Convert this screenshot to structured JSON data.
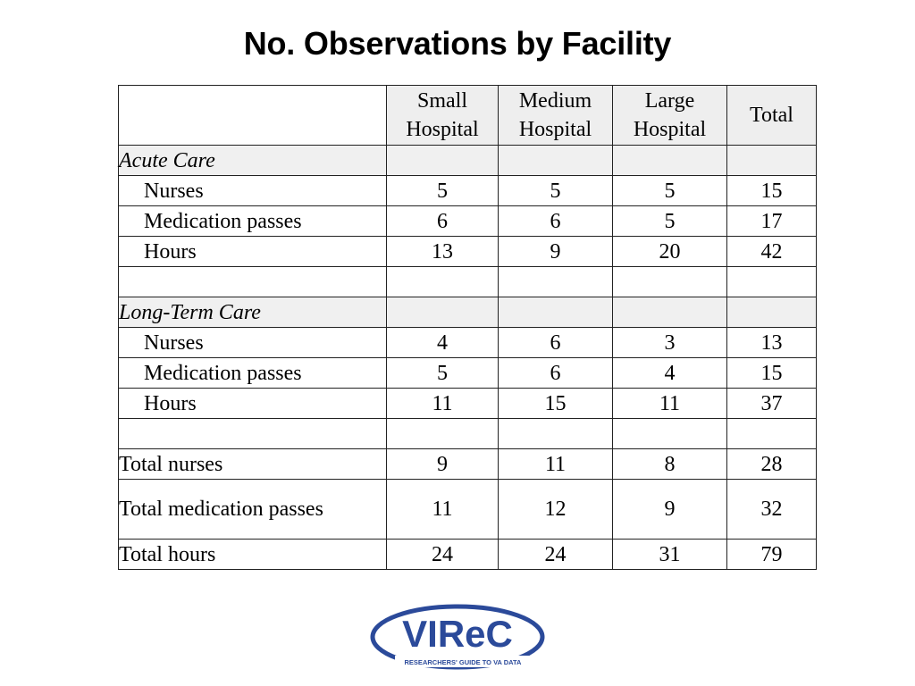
{
  "title": "No. Observations by Facility",
  "table": {
    "headers": [
      "",
      "Small\nHospital",
      "Medium\nHospital",
      "Large\nHospital",
      "Total"
    ],
    "header_lines": [
      [
        "Small",
        "Hospital"
      ],
      [
        "Medium",
        "Hospital"
      ],
      [
        "Large",
        "Hospital"
      ],
      [
        "Total"
      ]
    ],
    "rows": [
      {
        "type": "section",
        "label": "Acute Care",
        "values": [
          "",
          "",
          "",
          ""
        ]
      },
      {
        "type": "indent",
        "label": "Nurses",
        "values": [
          "5",
          "5",
          "5",
          "15"
        ]
      },
      {
        "type": "indent",
        "label": "Medication passes",
        "values": [
          "6",
          "6",
          "5",
          "17"
        ]
      },
      {
        "type": "indent",
        "label": "Hours",
        "values": [
          "13",
          "9",
          "20",
          "42"
        ]
      },
      {
        "type": "blank",
        "label": "",
        "values": [
          "",
          "",
          "",
          ""
        ]
      },
      {
        "type": "section",
        "label": "Long-Term Care",
        "values": [
          "",
          "",
          "",
          ""
        ]
      },
      {
        "type": "indent",
        "label": "Nurses",
        "values": [
          "4",
          "6",
          "3",
          "13"
        ]
      },
      {
        "type": "indent",
        "label": "Medication passes",
        "values": [
          "5",
          "6",
          "4",
          "15"
        ]
      },
      {
        "type": "indent",
        "label": "Hours",
        "values": [
          "11",
          "15",
          "11",
          "37"
        ]
      },
      {
        "type": "blank",
        "label": "",
        "values": [
          "",
          "",
          "",
          ""
        ]
      },
      {
        "type": "total",
        "label": "Total nurses",
        "values": [
          "9",
          "11",
          "8",
          "28"
        ]
      },
      {
        "type": "total-tall",
        "label": "Total medication passes",
        "values": [
          "11",
          "12",
          "9",
          "32"
        ]
      },
      {
        "type": "total",
        "label": "Total hours",
        "values": [
          "24",
          "24",
          "31",
          "79"
        ]
      }
    ]
  },
  "logo": {
    "text": "VIReC",
    "tagline": "RESEARCHERS' GUIDE TO VA DATA",
    "color": "#2b4a9a"
  }
}
